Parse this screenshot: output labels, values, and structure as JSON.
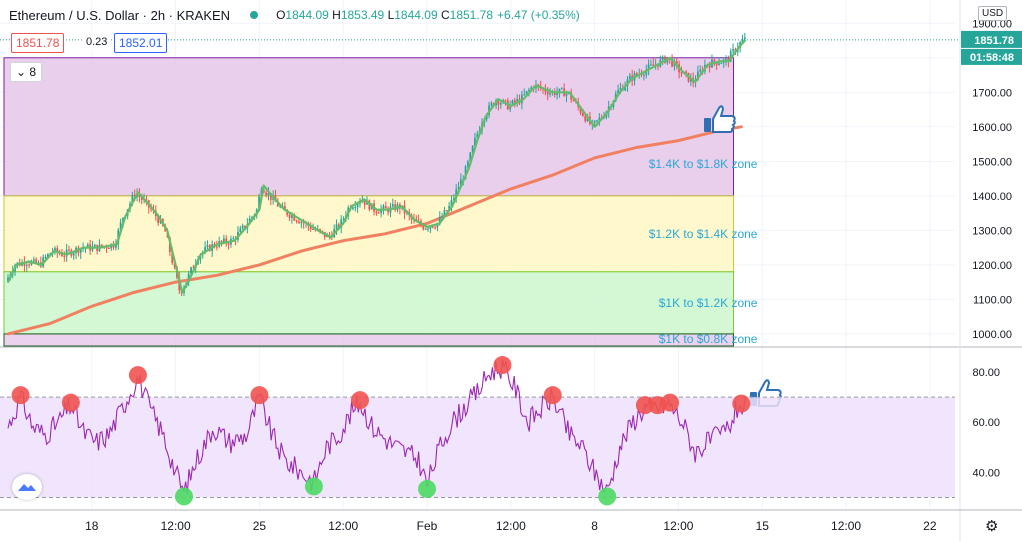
{
  "header": {
    "symbol": "Ethereum / U.S. Dollar · 2h · KRAKEN",
    "open_label": "O",
    "open": "1844.09",
    "high_label": "H",
    "high": "1853.49",
    "low_label": "L",
    "low": "1844.09",
    "close_label": "C",
    "close": "1851.78",
    "change": "+6.47 (+0.35%)",
    "bid": "1851.78",
    "spread": "0.23",
    "ask": "1852.01",
    "indicator_count": "8",
    "currency": "USD"
  },
  "current_price": {
    "label": "1851.78",
    "value": 1851.78
  },
  "countdown": "01:58:48",
  "settings_icon": "gear-icon",
  "thumbs_icon": "thumbs-up-icon",
  "colors": {
    "up": "#26a69a",
    "down": "#ef5350",
    "purple_zone": "#e6c7ea",
    "yellow_zone": "#fff7c4",
    "green_zone": "#cdf7cd",
    "rsi": "#9c27b0",
    "ema_fast": "#66bb6a",
    "ema_slow": "#f08060",
    "label": "#29a8d8"
  },
  "chart_data": [
    {
      "type": "candlestick",
      "title": "",
      "y_axis": {
        "ticks": [
          1000,
          1100,
          1200,
          1300,
          1400,
          1500,
          1600,
          1700,
          1800,
          1900
        ],
        "tick_labels": [
          "1000.00",
          "1100.00",
          "1200.00",
          "1300.00",
          "1400.00",
          "1500.00",
          "1600.00",
          "1700.00",
          "1800.00",
          "1900.00"
        ],
        "range": [
          965,
          1950
        ]
      },
      "x_axis": {
        "tick_labels": [
          "18",
          "12:00",
          "25",
          "12:00",
          "Feb",
          "12:00",
          "8",
          "12:00",
          "15",
          "12:00",
          "22"
        ],
        "tick_index": [
          1,
          2,
          3,
          4,
          5,
          6,
          7,
          8,
          9,
          10,
          11
        ],
        "index_range": [
          0,
          11.3
        ]
      },
      "zones": [
        {
          "label": "$1.4K to $1.8K zone",
          "from": 1400,
          "to": 1800
        },
        {
          "label": "$1.2K to $1.4K zone",
          "from": 1180,
          "to": 1400
        },
        {
          "label": "$1K to $1.2K zone",
          "from": 1000,
          "to": 1180
        },
        {
          "label": "$1K to $0.8K zone",
          "from": 965,
          "to": 1000
        }
      ],
      "price_path": [
        [
          0.0,
          1150
        ],
        [
          0.1,
          1200
        ],
        [
          0.25,
          1210
        ],
        [
          0.4,
          1200
        ],
        [
          0.55,
          1240
        ],
        [
          0.7,
          1230
        ],
        [
          0.9,
          1250
        ],
        [
          1.1,
          1250
        ],
        [
          1.3,
          1260
        ],
        [
          1.4,
          1340
        ],
        [
          1.55,
          1410
        ],
        [
          1.7,
          1370
        ],
        [
          1.8,
          1340
        ],
        [
          1.9,
          1300
        ],
        [
          2.0,
          1200
        ],
        [
          2.08,
          1120
        ],
        [
          2.15,
          1150
        ],
        [
          2.3,
          1230
        ],
        [
          2.5,
          1260
        ],
        [
          2.7,
          1270
        ],
        [
          2.85,
          1310
        ],
        [
          3.0,
          1360
        ],
        [
          3.05,
          1430
        ],
        [
          3.15,
          1400
        ],
        [
          3.3,
          1360
        ],
        [
          3.5,
          1330
        ],
        [
          3.7,
          1300
        ],
        [
          3.85,
          1280
        ],
        [
          4.0,
          1320
        ],
        [
          4.1,
          1370
        ],
        [
          4.25,
          1390
        ],
        [
          4.4,
          1360
        ],
        [
          4.55,
          1360
        ],
        [
          4.7,
          1370
        ],
        [
          4.85,
          1330
        ],
        [
          5.0,
          1310
        ],
        [
          5.15,
          1320
        ],
        [
          5.3,
          1370
        ],
        [
          5.5,
          1480
        ],
        [
          5.6,
          1560
        ],
        [
          5.7,
          1630
        ],
        [
          5.85,
          1680
        ],
        [
          6.0,
          1660
        ],
        [
          6.15,
          1680
        ],
        [
          6.3,
          1720
        ],
        [
          6.5,
          1700
        ],
        [
          6.7,
          1700
        ],
        [
          6.85,
          1650
        ],
        [
          7.0,
          1600
        ],
        [
          7.15,
          1640
        ],
        [
          7.3,
          1700
        ],
        [
          7.45,
          1740
        ],
        [
          7.6,
          1760
        ],
        [
          7.75,
          1780
        ],
        [
          7.9,
          1800
        ],
        [
          8.05,
          1760
        ],
        [
          8.2,
          1730
        ],
        [
          8.35,
          1780
        ],
        [
          8.5,
          1790
        ],
        [
          8.6,
          1790
        ],
        [
          8.72,
          1830
        ],
        [
          8.8,
          1851.78
        ]
      ],
      "ema_slow": [
        [
          0.0,
          1000
        ],
        [
          0.5,
          1030
        ],
        [
          1.0,
          1080
        ],
        [
          1.5,
          1120
        ],
        [
          2.0,
          1150
        ],
        [
          2.5,
          1170
        ],
        [
          3.0,
          1200
        ],
        [
          3.5,
          1240
        ],
        [
          4.0,
          1270
        ],
        [
          4.5,
          1290
        ],
        [
          5.0,
          1320
        ],
        [
          5.5,
          1370
        ],
        [
          6.0,
          1420
        ],
        [
          6.5,
          1460
        ],
        [
          7.0,
          1510
        ],
        [
          7.5,
          1540
        ],
        [
          8.0,
          1560
        ],
        [
          8.5,
          1590
        ],
        [
          8.75,
          1600
        ]
      ]
    },
    {
      "type": "line",
      "title": "",
      "y_axis": {
        "ticks": [
          40,
          60,
          80
        ],
        "tick_labels": [
          "40.00",
          "60.00",
          "80.00"
        ],
        "range": [
          25,
          88
        ]
      },
      "bands": {
        "upper": 70,
        "lower": 30
      },
      "series": [
        {
          "values": [
            [
              0.0,
              58
            ],
            [
              0.15,
              70
            ],
            [
              0.3,
              58
            ],
            [
              0.45,
              55
            ],
            [
              0.6,
              60
            ],
            [
              0.75,
              67
            ],
            [
              0.9,
              56
            ],
            [
              1.05,
              52
            ],
            [
              1.2,
              55
            ],
            [
              1.4,
              68
            ],
            [
              1.55,
              78
            ],
            [
              1.7,
              65
            ],
            [
              1.85,
              55
            ],
            [
              2.0,
              40
            ],
            [
              2.1,
              32
            ],
            [
              2.25,
              45
            ],
            [
              2.45,
              58
            ],
            [
              2.65,
              52
            ],
            [
              2.85,
              55
            ],
            [
              3.0,
              70
            ],
            [
              3.15,
              55
            ],
            [
              3.3,
              45
            ],
            [
              3.5,
              40
            ],
            [
              3.65,
              36
            ],
            [
              3.8,
              50
            ],
            [
              3.95,
              55
            ],
            [
              4.1,
              64
            ],
            [
              4.2,
              68
            ],
            [
              4.35,
              58
            ],
            [
              4.55,
              52
            ],
            [
              4.75,
              48
            ],
            [
              4.9,
              45
            ],
            [
              5.0,
              35
            ],
            [
              5.15,
              50
            ],
            [
              5.3,
              60
            ],
            [
              5.45,
              66
            ],
            [
              5.6,
              72
            ],
            [
              5.75,
              80
            ],
            [
              5.9,
              82
            ],
            [
              6.05,
              74
            ],
            [
              6.2,
              60
            ],
            [
              6.35,
              65
            ],
            [
              6.5,
              70
            ],
            [
              6.7,
              55
            ],
            [
              6.85,
              50
            ],
            [
              7.0,
              40
            ],
            [
              7.15,
              32
            ],
            [
              7.3,
              50
            ],
            [
              7.45,
              60
            ],
            [
              7.6,
              66
            ],
            [
              7.75,
              66
            ],
            [
              7.9,
              67
            ],
            [
              8.05,
              60
            ],
            [
              8.2,
              48
            ],
            [
              8.35,
              52
            ],
            [
              8.5,
              55
            ],
            [
              8.6,
              58
            ],
            [
              8.72,
              67
            ],
            [
              8.8,
              66
            ]
          ]
        }
      ],
      "overbought_markers": [
        0.15,
        0.75,
        1.55,
        3.0,
        4.2,
        5.9,
        6.5,
        7.6,
        7.75,
        7.9,
        8.75
      ],
      "oversold_markers": [
        2.1,
        3.65,
        5.0,
        7.15
      ]
    }
  ]
}
